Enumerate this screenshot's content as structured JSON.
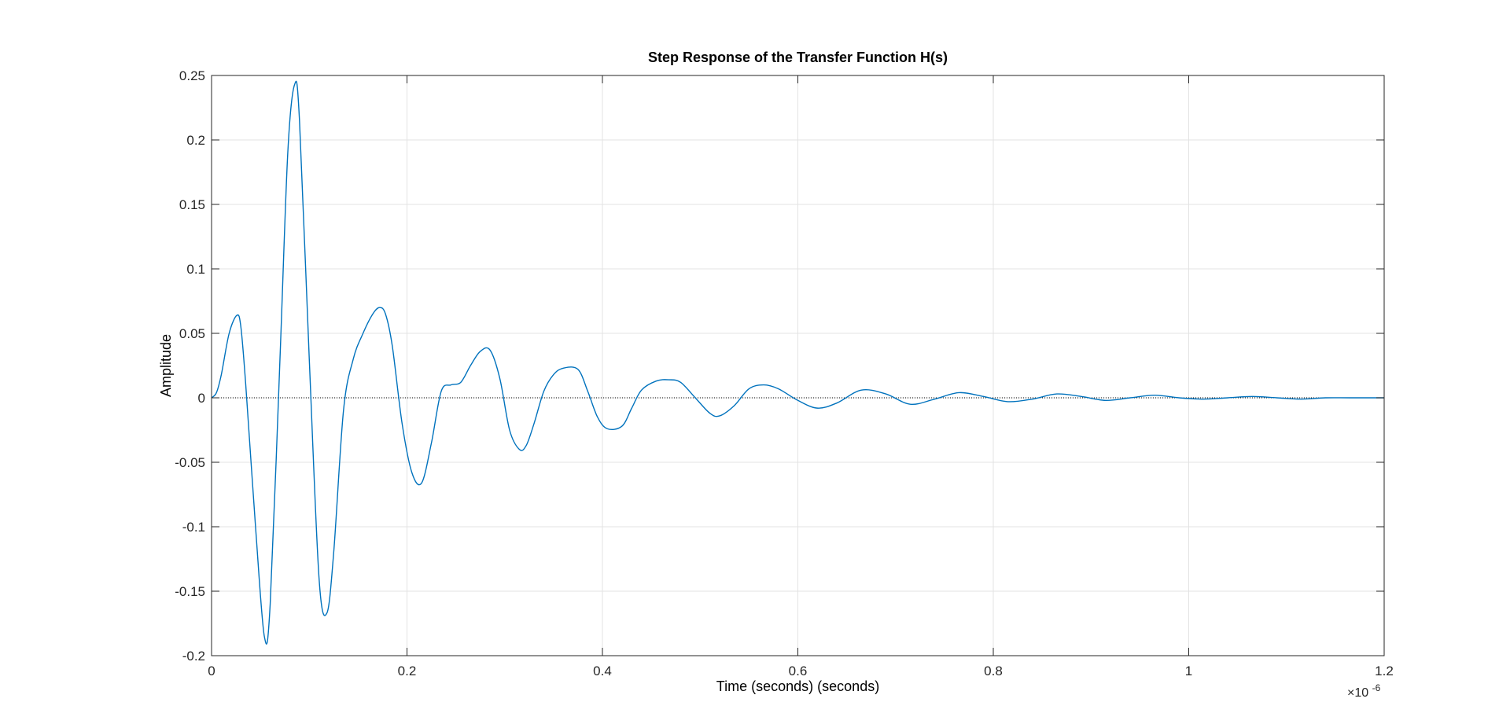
{
  "colors": {
    "series": "#0072bd",
    "grid": "#e3e3e3",
    "axis": "#262626",
    "zero_line": "#000000"
  },
  "chart_data": {
    "type": "line",
    "title": "Step Response of the Transfer Function H(s)",
    "xlabel": "Time (seconds) (seconds)",
    "ylabel": "Amplitude",
    "x_exponent_base": "×10",
    "x_exponent_power": "-6",
    "xlim": [
      0,
      1.2
    ],
    "ylim": [
      -0.2,
      0.25
    ],
    "grid": true,
    "x_ticks": [
      0,
      0.2,
      0.4,
      0.6,
      0.8,
      1,
      1.2
    ],
    "x_tick_labels": [
      "0",
      "0.2",
      "0.4",
      "0.6",
      "0.8",
      "1",
      "1.2"
    ],
    "y_ticks": [
      -0.2,
      -0.15,
      -0.1,
      -0.05,
      0,
      0.05,
      0.1,
      0.15,
      0.2,
      0.25
    ],
    "y_tick_labels": [
      "-0.2",
      "-0.15",
      "-0.1",
      "-0.05",
      "0",
      "0.05",
      "0.1",
      "0.15",
      "0.2",
      "0.25"
    ],
    "reference_line_y": 0,
    "series": [
      {
        "x": [
          0,
          0.005,
          0.01,
          0.018,
          0.026,
          0.03,
          0.035,
          0.045,
          0.054,
          0.06,
          0.07,
          0.078,
          0.085,
          0.09,
          0.1,
          0.11,
          0.118,
          0.125,
          0.135,
          0.145,
          0.155,
          0.165,
          0.172,
          0.178,
          0.185,
          0.195,
          0.205,
          0.215,
          0.225,
          0.235,
          0.245,
          0.255,
          0.265,
          0.275,
          0.285,
          0.295,
          0.305,
          0.315,
          0.322,
          0.33,
          0.34,
          0.35,
          0.36,
          0.375,
          0.385,
          0.395,
          0.405,
          0.42,
          0.43,
          0.44,
          0.455,
          0.468,
          0.48,
          0.495,
          0.51,
          0.52,
          0.535,
          0.55,
          0.565,
          0.58,
          0.6,
          0.62,
          0.64,
          0.665,
          0.69,
          0.715,
          0.74,
          0.765,
          0.79,
          0.815,
          0.84,
          0.865,
          0.89,
          0.915,
          0.94,
          0.965,
          0.99,
          1.015,
          1.04,
          1.065,
          1.09,
          1.115,
          1.14,
          1.165,
          1.2
        ],
        "y": [
          0,
          0.004,
          0.018,
          0.05,
          0.064,
          0.055,
          0.01,
          -0.1,
          -0.185,
          -0.16,
          0.03,
          0.19,
          0.243,
          0.215,
          0.03,
          -0.14,
          -0.167,
          -0.12,
          -0.01,
          0.03,
          0.05,
          0.065,
          0.07,
          0.065,
          0.04,
          -0.02,
          -0.058,
          -0.066,
          -0.035,
          0.005,
          0.01,
          0.012,
          0.025,
          0.036,
          0.037,
          0.015,
          -0.025,
          -0.04,
          -0.037,
          -0.02,
          0.005,
          0.018,
          0.023,
          0.022,
          0.005,
          -0.015,
          -0.024,
          -0.022,
          -0.008,
          0.006,
          0.013,
          0.014,
          0.012,
          0.0,
          -0.012,
          -0.014,
          -0.006,
          0.007,
          0.01,
          0.007,
          -0.002,
          -0.008,
          -0.004,
          0.006,
          0.003,
          -0.005,
          -0.001,
          0.004,
          0.001,
          -0.003,
          -0.001,
          0.003,
          0.001,
          -0.002,
          0.0,
          0.002,
          0.0,
          -0.001,
          0.0,
          0.001,
          0.0,
          -0.001,
          0.0,
          0.0,
          0.0
        ]
      }
    ]
  }
}
